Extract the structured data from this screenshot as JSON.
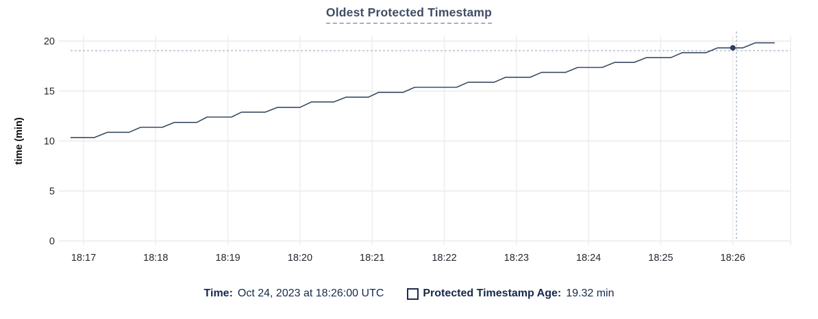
{
  "title": "Oldest Protected Timestamp",
  "colors": {
    "title": "#404d64",
    "line": "#394a63",
    "dot": "#2e3f5c",
    "grid": "#ececec",
    "crosshair": "#a2b1c2",
    "tick_text": "#23272e",
    "axis_title_text": "#0b0d10",
    "legend_text": "#14294a"
  },
  "tooltip": {
    "time_label": "Time:",
    "time_value": "Oct 24, 2023 at 18:26:00 UTC",
    "series_label": "Protected Timestamp Age:",
    "series_value": "19.32 min"
  },
  "chart_data": {
    "type": "line",
    "title": "Oldest Protected Timestamp",
    "xlabel": "",
    "ylabel": "time (min)",
    "x_ticks": [
      "18:17",
      "18:18",
      "18:19",
      "18:20",
      "18:21",
      "18:22",
      "18:23",
      "18:24",
      "18:25",
      "18:26"
    ],
    "y_ticks": [
      0,
      5,
      10,
      15,
      20
    ],
    "ylim": [
      0,
      20
    ],
    "grid": true,
    "legend_position": "bottom",
    "series": [
      {
        "name": "Protected Timestamp Age",
        "unit": "min",
        "x_unit": "minutes after 18:17:00 UTC",
        "points": [
          [
            -0.18,
            10.35
          ],
          [
            0.15,
            10.35
          ],
          [
            0.33,
            10.87
          ],
          [
            0.63,
            10.87
          ],
          [
            0.79,
            11.37
          ],
          [
            1.09,
            11.37
          ],
          [
            1.26,
            11.86
          ],
          [
            1.57,
            11.86
          ],
          [
            1.71,
            12.4
          ],
          [
            2.05,
            12.4
          ],
          [
            2.19,
            12.89
          ],
          [
            2.52,
            12.89
          ],
          [
            2.69,
            13.37
          ],
          [
            3.0,
            13.37
          ],
          [
            3.16,
            13.91
          ],
          [
            3.47,
            13.91
          ],
          [
            3.64,
            14.39
          ],
          [
            3.95,
            14.39
          ],
          [
            4.09,
            14.87
          ],
          [
            4.43,
            14.87
          ],
          [
            4.59,
            15.38
          ],
          [
            5.17,
            15.38
          ],
          [
            5.33,
            15.88
          ],
          [
            5.69,
            15.88
          ],
          [
            5.85,
            16.38
          ],
          [
            6.19,
            16.38
          ],
          [
            6.35,
            16.87
          ],
          [
            6.68,
            16.87
          ],
          [
            6.85,
            17.36
          ],
          [
            7.19,
            17.36
          ],
          [
            7.36,
            17.86
          ],
          [
            7.63,
            17.86
          ],
          [
            7.8,
            18.34
          ],
          [
            8.14,
            18.34
          ],
          [
            8.3,
            18.84
          ],
          [
            8.63,
            18.84
          ],
          [
            8.79,
            19.32
          ],
          [
            9.14,
            19.32
          ],
          [
            9.31,
            19.82
          ],
          [
            9.58,
            19.82
          ]
        ]
      }
    ],
    "highlight_point": {
      "time": "18:26:00",
      "t": 9.0,
      "value": 19.32
    },
    "crosshair": {
      "t": 9.05,
      "value": 19.04
    }
  }
}
